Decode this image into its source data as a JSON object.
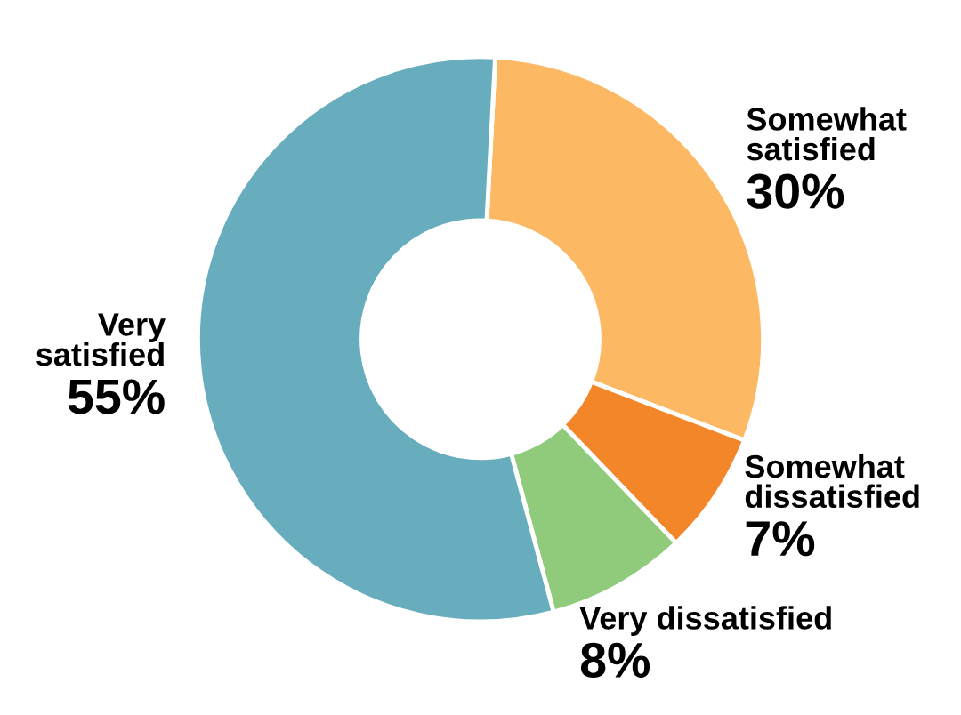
{
  "chart_data": {
    "type": "donut",
    "categories": [
      "Somewhat\nsatisfied",
      "Somewhat\ndissatisfied",
      "Very dissatisfied",
      "Very\nsatisfied"
    ],
    "values": [
      30,
      7,
      8,
      55
    ],
    "colors": [
      "#fdb863",
      "#f4862a",
      "#8fcb7a",
      "#67adbd"
    ],
    "value_labels": [
      "30%",
      "7%",
      "8%",
      "55%"
    ]
  }
}
